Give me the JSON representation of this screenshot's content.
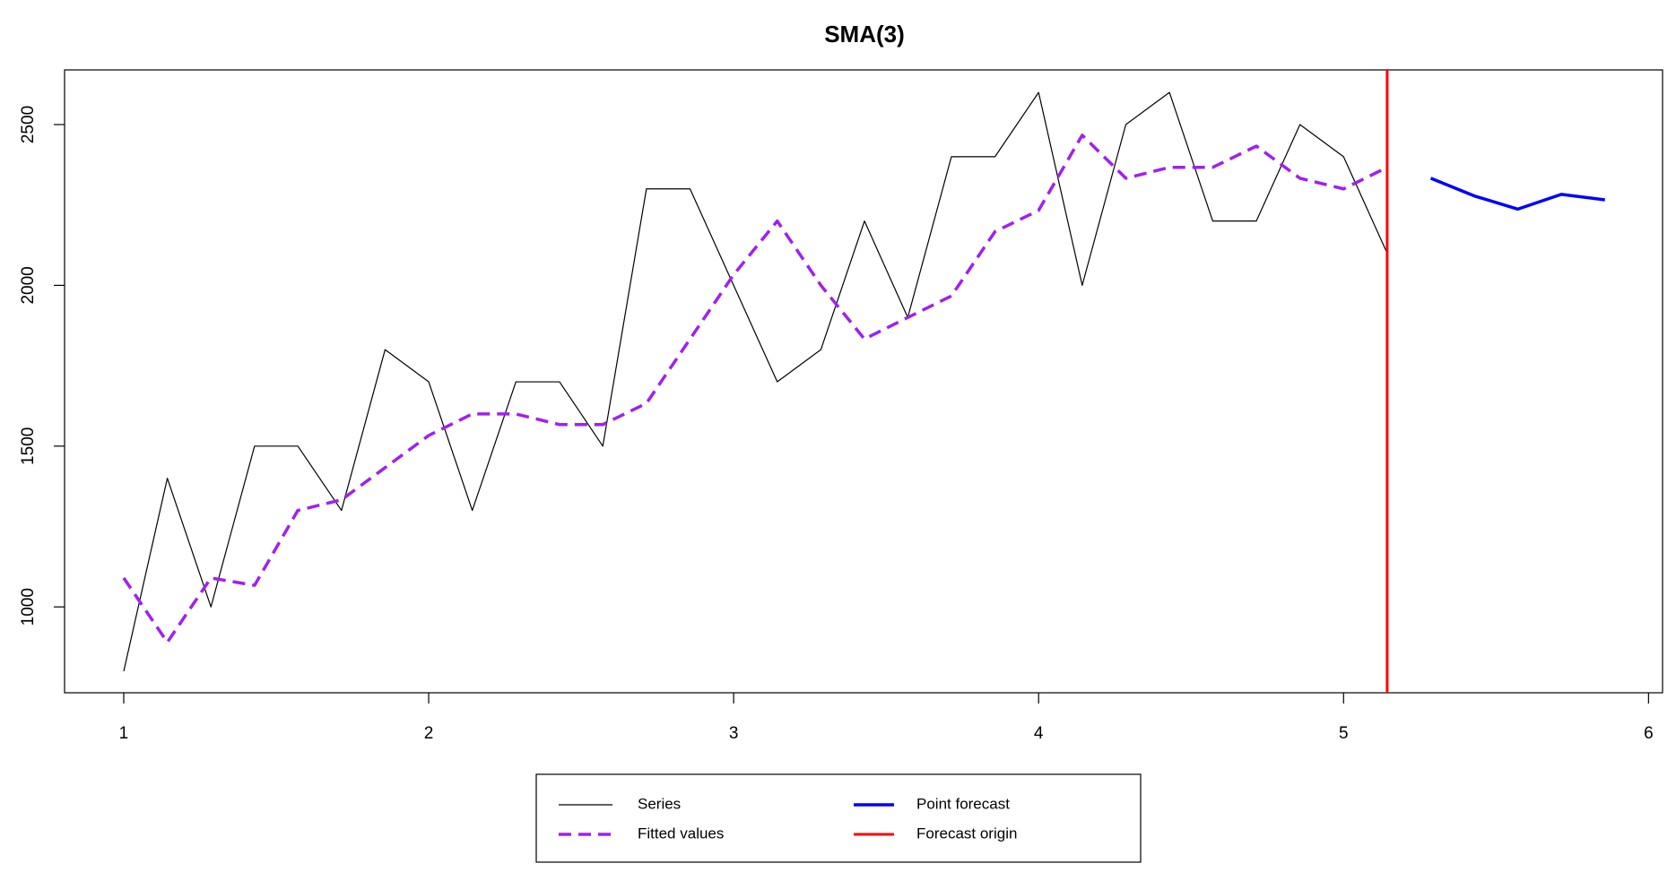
{
  "chart_data": {
    "type": "line",
    "title": "SMA(3)",
    "xlim": [
      0.806,
      6.046
    ],
    "ylim": [
      733,
      2670
    ],
    "xticks": [
      1,
      2,
      3,
      4,
      5,
      6
    ],
    "yticks": [
      1000,
      1500,
      2000,
      2500
    ],
    "series": [
      {
        "name": "Series",
        "color": "#000000",
        "dash": false,
        "width": 1.2,
        "x": [
          1,
          1.143,
          1.286,
          1.429,
          1.571,
          1.714,
          1.857,
          2,
          2.143,
          2.286,
          2.429,
          2.571,
          2.714,
          2.857,
          3,
          3.143,
          3.286,
          3.429,
          3.571,
          3.714,
          3.857,
          4,
          4.143,
          4.286,
          4.429,
          4.571,
          4.714,
          4.857,
          5,
          5.143
        ],
        "values": [
          800,
          1400,
          1000,
          1500,
          1500,
          1300,
          1800,
          1700,
          1300,
          1700,
          1700,
          1500,
          2300,
          2300,
          2000,
          1700,
          1800,
          2200,
          1900,
          2400,
          2400,
          2600,
          2000,
          2500,
          2600,
          2200,
          2200,
          2500,
          2400,
          2100
        ]
      },
      {
        "name": "Fitted values",
        "color": "#a020f0",
        "dash": true,
        "width": 3.5,
        "x": [
          1,
          1.143,
          1.286,
          1.429,
          1.571,
          1.714,
          1.857,
          2,
          2.143,
          2.286,
          2.429,
          2.571,
          2.714,
          2.857,
          3,
          3.143,
          3.286,
          3.429,
          3.571,
          3.714,
          3.857,
          4,
          4.143,
          4.286,
          4.429,
          4.571,
          4.714,
          4.857,
          5,
          5.143
        ],
        "values": [
          1090,
          890,
          1090,
          1067,
          1300,
          1333,
          1433,
          1533,
          1600,
          1600,
          1567,
          1567,
          1633,
          1833,
          2033,
          2200,
          2000,
          1833,
          1900,
          1967,
          2167,
          2233,
          2467,
          2333,
          2367,
          2367,
          2433,
          2333,
          2300,
          2367
        ]
      },
      {
        "name": "Point forecast",
        "color": "#0000ff",
        "dash": false,
        "width": 3.5,
        "x": [
          5.286,
          5.429,
          5.571,
          5.714,
          5.857
        ],
        "values": [
          2333,
          2278,
          2237,
          2283,
          2266
        ]
      }
    ],
    "vlines": [
      {
        "name": "Forecast origin",
        "color": "#ff0000",
        "x": 5.143
      }
    ]
  }
}
